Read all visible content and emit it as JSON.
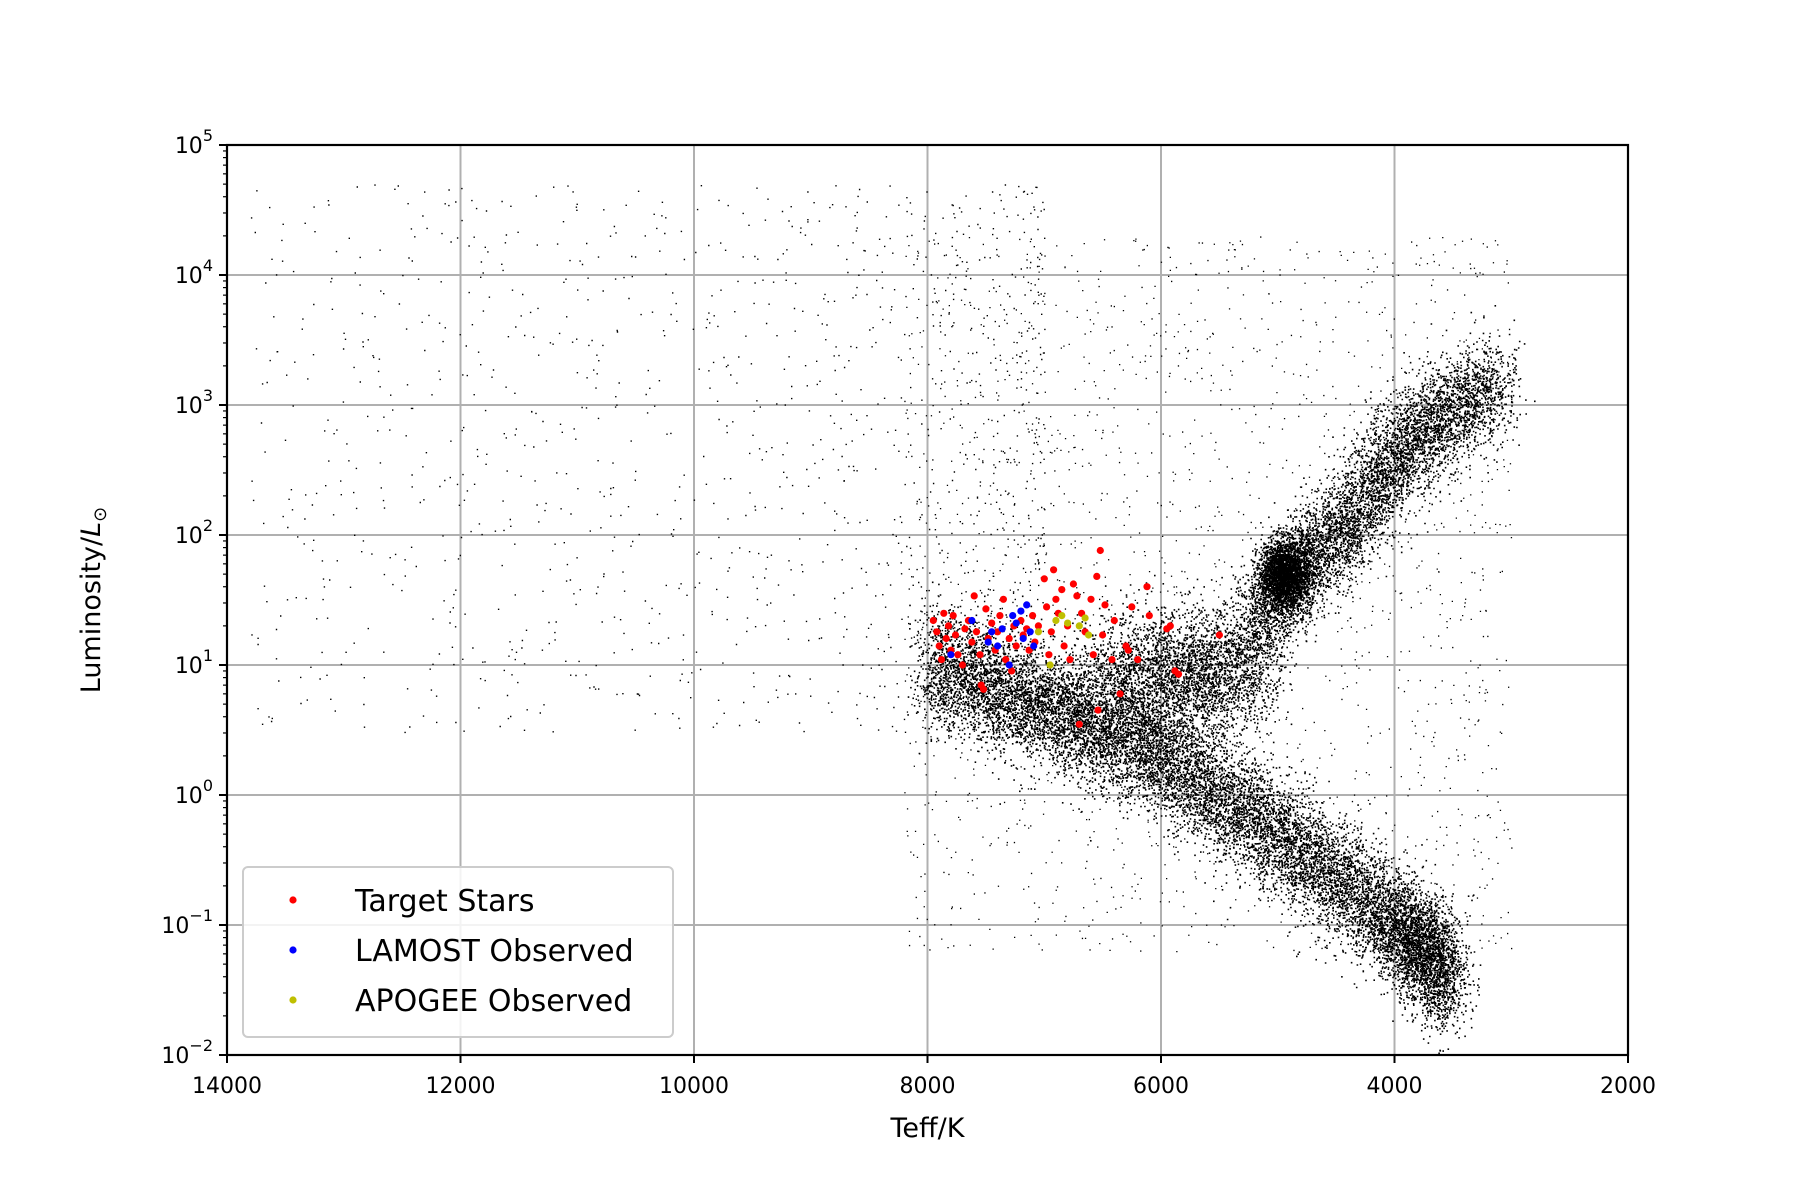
{
  "chart_data": {
    "type": "scatter",
    "title": "",
    "xlabel": "Teff/K",
    "ylabel": "Luminosity/",
    "ylabel_symbol": "L",
    "ylabel_subscript": "⊙",
    "x_range": [
      14000,
      2000
    ],
    "x_inverted": true,
    "y_range": [
      0.01,
      100000
    ],
    "y_scale": "log",
    "grid": true,
    "x_ticks": [
      {
        "value": 14000,
        "label": "14000"
      },
      {
        "value": 12000,
        "label": "12000"
      },
      {
        "value": 10000,
        "label": "10000"
      },
      {
        "value": 8000,
        "label": "8000"
      },
      {
        "value": 6000,
        "label": "6000"
      },
      {
        "value": 4000,
        "label": "4000"
      },
      {
        "value": 2000,
        "label": "2000"
      }
    ],
    "y_ticks": [
      {
        "value": 0.01,
        "base": "10",
        "exp": "−2"
      },
      {
        "value": 0.1,
        "base": "10",
        "exp": "−1"
      },
      {
        "value": 1,
        "base": "10",
        "exp": "0"
      },
      {
        "value": 10,
        "base": "10",
        "exp": "1"
      },
      {
        "value": 100,
        "base": "10",
        "exp": "2"
      },
      {
        "value": 1000,
        "base": "10",
        "exp": "3"
      },
      {
        "value": 10000,
        "base": "10",
        "exp": "4"
      },
      {
        "value": 100000,
        "base": "10",
        "exp": "5"
      }
    ],
    "legend_position": "lower-left",
    "background_stars": {
      "color": "#000000",
      "approx_count": 180000,
      "regions": [
        {
          "region": "main-sequence",
          "path_teff": [
            8000,
            7000,
            6000,
            5000,
            4000,
            3500
          ],
          "path_lum": [
            10,
            5,
            2,
            0.5,
            0.1,
            0.04
          ]
        },
        {
          "region": "red-giant-branch",
          "path_teff": [
            5200,
            4800,
            4400,
            4000,
            3600,
            3100
          ],
          "path_lum": [
            20,
            60,
            120,
            400,
            800,
            1500
          ]
        },
        {
          "region": "red-clump",
          "teff": 4950,
          "lum": 50
        },
        {
          "region": "subgiant-branch",
          "path_teff": [
            6500,
            5800,
            5200
          ],
          "path_lum": [
            8,
            8,
            10
          ]
        },
        {
          "region": "hot-sparse",
          "teff_range": [
            13800,
            7000
          ],
          "lum_range": [
            3,
            50000
          ]
        }
      ]
    },
    "series": [
      {
        "name": "Target Stars",
        "color": "#ff0000",
        "points": [
          [
            7950,
            22
          ],
          [
            7920,
            18
          ],
          [
            7900,
            14
          ],
          [
            7880,
            11
          ],
          [
            7860,
            25
          ],
          [
            7840,
            16
          ],
          [
            7820,
            20
          ],
          [
            7800,
            13
          ],
          [
            7780,
            24
          ],
          [
            7760,
            17
          ],
          [
            7740,
            12
          ],
          [
            7700,
            10
          ],
          [
            7680,
            19
          ],
          [
            7650,
            22
          ],
          [
            7620,
            15
          ],
          [
            7600,
            34
          ],
          [
            7580,
            18
          ],
          [
            7550,
            12
          ],
          [
            7540,
            7
          ],
          [
            7520,
            6.5
          ],
          [
            7500,
            27
          ],
          [
            7480,
            16
          ],
          [
            7450,
            21
          ],
          [
            7420,
            13
          ],
          [
            7400,
            18
          ],
          [
            7380,
            24
          ],
          [
            7350,
            32
          ],
          [
            7330,
            11
          ],
          [
            7300,
            16
          ],
          [
            7280,
            9
          ],
          [
            7260,
            20
          ],
          [
            7240,
            14
          ],
          [
            7200,
            22
          ],
          [
            7180,
            17
          ],
          [
            7150,
            19
          ],
          [
            7130,
            13
          ],
          [
            7100,
            24
          ],
          [
            7080,
            15
          ],
          [
            7050,
            20
          ],
          [
            7000,
            46
          ],
          [
            6980,
            28
          ],
          [
            6960,
            12
          ],
          [
            6940,
            18
          ],
          [
            6920,
            54
          ],
          [
            6900,
            32
          ],
          [
            6880,
            25
          ],
          [
            6850,
            38
          ],
          [
            6830,
            14
          ],
          [
            6800,
            20
          ],
          [
            6780,
            11
          ],
          [
            6750,
            42
          ],
          [
            6720,
            34
          ],
          [
            6700,
            3.5
          ],
          [
            6680,
            25
          ],
          [
            6650,
            18
          ],
          [
            6600,
            32
          ],
          [
            6580,
            12
          ],
          [
            6550,
            48
          ],
          [
            6540,
            4.5
          ],
          [
            6520,
            76
          ],
          [
            6500,
            17
          ],
          [
            6480,
            29
          ],
          [
            6420,
            11
          ],
          [
            6400,
            22
          ],
          [
            6350,
            6
          ],
          [
            6300,
            14
          ],
          [
            6280,
            13
          ],
          [
            6250,
            28
          ],
          [
            6200,
            11
          ],
          [
            6120,
            40
          ],
          [
            6100,
            24
          ],
          [
            5950,
            19
          ],
          [
            5920,
            20
          ],
          [
            5880,
            9
          ],
          [
            5850,
            8.5
          ],
          [
            5500,
            17
          ]
        ]
      },
      {
        "name": "LAMOST Observed",
        "color": "#0000ff",
        "points": [
          [
            7800,
            12
          ],
          [
            7620,
            22
          ],
          [
            7480,
            15
          ],
          [
            7450,
            18
          ],
          [
            7400,
            14
          ],
          [
            7360,
            19
          ],
          [
            7300,
            10
          ],
          [
            7270,
            24
          ],
          [
            7240,
            21
          ],
          [
            7200,
            26
          ],
          [
            7180,
            16
          ],
          [
            7150,
            29
          ],
          [
            7120,
            18
          ],
          [
            7090,
            14
          ]
        ]
      },
      {
        "name": "APOGEE Observed",
        "color": "#bfbf00",
        "points": [
          [
            7050,
            18
          ],
          [
            6950,
            10
          ],
          [
            6900,
            22
          ],
          [
            6850,
            24
          ],
          [
            6800,
            21
          ],
          [
            6700,
            20
          ],
          [
            6650,
            23
          ],
          [
            6620,
            17
          ]
        ]
      }
    ]
  }
}
